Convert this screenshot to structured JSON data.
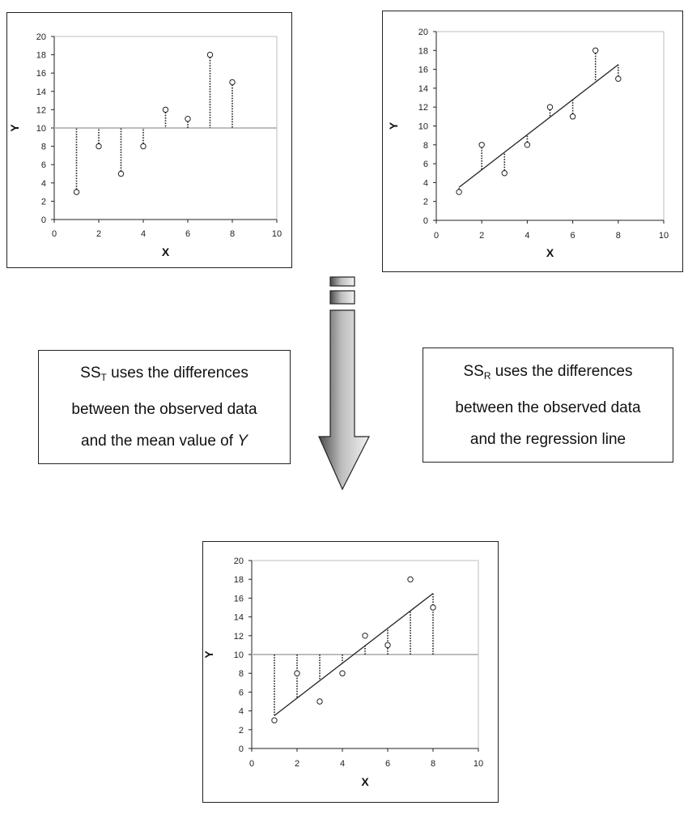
{
  "chart_data": [
    {
      "type": "scatter",
      "title": "",
      "xlabel": "X",
      "ylabel": "Y",
      "xlim": [
        0,
        10
      ],
      "ylim": [
        0,
        20
      ],
      "xticks": [
        0,
        2,
        4,
        6,
        8,
        10
      ],
      "yticks": [
        0,
        2,
        4,
        6,
        8,
        10,
        12,
        14,
        16,
        18,
        20
      ],
      "points": [
        [
          1,
          3
        ],
        [
          2,
          8
        ],
        [
          3,
          5
        ],
        [
          4,
          8
        ],
        [
          5,
          12
        ],
        [
          6,
          11
        ],
        [
          7,
          18
        ],
        [
          8,
          15
        ]
      ],
      "mean_y": 10,
      "residuals_to": "mean"
    },
    {
      "type": "scatter",
      "title": "",
      "xlabel": "X",
      "ylabel": "Y",
      "xlim": [
        0,
        10
      ],
      "ylim": [
        0,
        20
      ],
      "xticks": [
        0,
        2,
        4,
        6,
        8,
        10
      ],
      "yticks": [
        0,
        2,
        4,
        6,
        8,
        10,
        12,
        14,
        16,
        18,
        20
      ],
      "points": [
        [
          1,
          3
        ],
        [
          2,
          8
        ],
        [
          3,
          5
        ],
        [
          4,
          8
        ],
        [
          5,
          12
        ],
        [
          6,
          11
        ],
        [
          7,
          18
        ],
        [
          8,
          15
        ]
      ],
      "regression_line": {
        "x": [
          1,
          8
        ],
        "y": [
          3.5,
          16.5
        ]
      },
      "residuals_to": "regression"
    },
    {
      "type": "scatter",
      "title": "",
      "xlabel": "X",
      "ylabel": "Y",
      "xlim": [
        0,
        10
      ],
      "ylim": [
        0,
        20
      ],
      "xticks": [
        0,
        2,
        4,
        6,
        8,
        10
      ],
      "yticks": [
        0,
        2,
        4,
        6,
        8,
        10,
        12,
        14,
        16,
        18,
        20
      ],
      "points": [
        [
          1,
          3
        ],
        [
          2,
          8
        ],
        [
          3,
          5
        ],
        [
          4,
          8
        ],
        [
          5,
          12
        ],
        [
          6,
          11
        ],
        [
          7,
          18
        ],
        [
          8,
          15
        ]
      ],
      "mean_y": 10,
      "regression_line": {
        "x": [
          1,
          8
        ],
        "y": [
          3.5,
          16.5
        ]
      },
      "residuals_to": "mean-to-regression"
    }
  ],
  "captions": {
    "sst": {
      "symbol": "SS",
      "subscript": "T",
      "line1_rest": " uses the differences",
      "line2": "between the observed data",
      "line3_prefix": "and the mean value of ",
      "line3_var": "Y"
    },
    "ssr": {
      "symbol": "SS",
      "subscript": "R",
      "line1_rest": " uses the differences",
      "line2": "between the observed data",
      "line3": "and the regression line"
    }
  },
  "colors": {
    "mean_line": "#bdbdbd",
    "plot_border": "#bdbdbd",
    "ink": "#222222",
    "arrow_dark": "#4a4a4a",
    "arrow_light": "#f2f2f2"
  }
}
